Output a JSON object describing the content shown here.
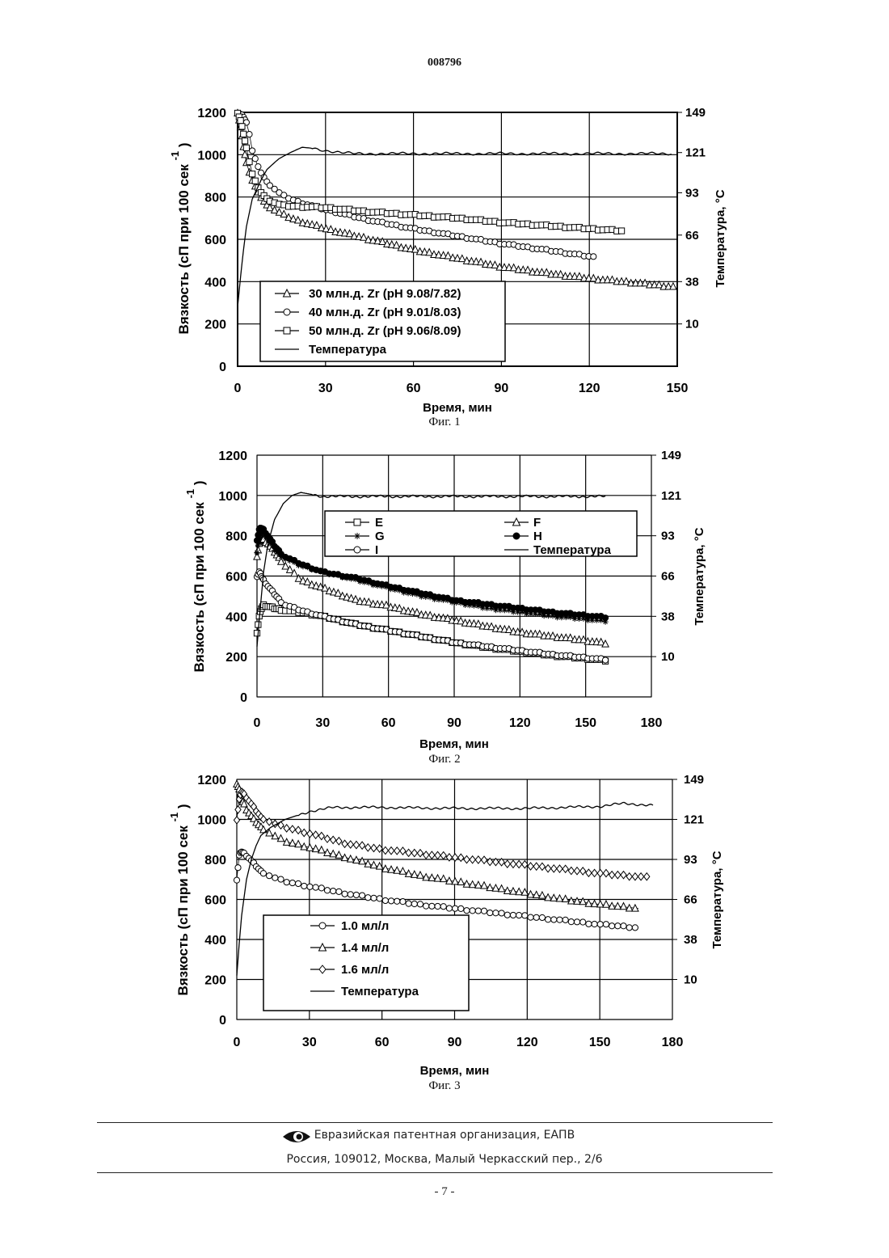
{
  "page": {
    "header_number": "008796",
    "footer_org": "Евразийская патентная организация, ЕАПВ",
    "footer_address": "Россия, 109012, Москва, Малый Черкасский пер., 2/6",
    "page_number": "- 7 -",
    "logo_icon": "eapo-eye-logo-icon"
  },
  "chart_data": [
    {
      "type": "line",
      "caption": "Фиг. 1",
      "xlabel": "Время, мин",
      "ylabel": "Вязкость (сП при 100 сек",
      "ylabel_sup": "-1",
      "ylabel_close": ")",
      "ylabel_right": "Температура,  °C",
      "xlim": [
        0,
        150
      ],
      "ylim": [
        0,
        1200
      ],
      "xticks": [
        "0",
        "30",
        "60",
        "90",
        "120",
        "150"
      ],
      "yticks": [
        "0",
        "200",
        "400",
        "600",
        "800",
        "1000",
        "1200"
      ],
      "y2_ticks": [
        "10",
        "38",
        "66",
        "93",
        "121",
        "149"
      ],
      "y2_positions": [
        200,
        400,
        620,
        820,
        1010,
        1200
      ],
      "grid": true,
      "legend_position": "bottom-left",
      "series": [
        {
          "name": "30  млн.д.  Zr (pH 9.08/7.82)",
          "marker": "triangle",
          "x_end": 149,
          "x": [
            0,
            1,
            2,
            3,
            5,
            7,
            10,
            15,
            20,
            30,
            45,
            60,
            75,
            90,
            105,
            120,
            135,
            149
          ],
          "values": [
            1200,
            1130,
            1040,
            960,
            880,
            820,
            760,
            720,
            690,
            650,
            600,
            550,
            510,
            470,
            440,
            415,
            395,
            375
          ]
        },
        {
          "name": "40  млн.д.  Zr (pH 9.01/8.03)",
          "marker": "circle",
          "x_end": 122,
          "x": [
            0,
            1,
            2,
            3,
            4,
            5,
            7,
            10,
            15,
            20,
            30,
            45,
            60,
            75,
            90,
            105,
            122
          ],
          "values": [
            1200,
            1190,
            1180,
            1150,
            1100,
            1020,
            940,
            870,
            810,
            780,
            740,
            690,
            650,
            615,
            580,
            550,
            515
          ]
        },
        {
          "name": "50  млн.д.  Zr (pH 9.06/8.09)",
          "marker": "square",
          "x_end": 131,
          "x": [
            0,
            1,
            2,
            3,
            4,
            5,
            7,
            10,
            15,
            20,
            30,
            45,
            60,
            75,
            90,
            105,
            120,
            131
          ],
          "values": [
            1200,
            1160,
            1100,
            1030,
            970,
            910,
            840,
            790,
            760,
            755,
            750,
            730,
            715,
            700,
            680,
            665,
            650,
            640
          ]
        },
        {
          "name": "Температура",
          "marker": "none",
          "x_end": 148,
          "x": [
            0,
            1,
            2,
            3,
            5,
            8,
            10,
            14,
            18,
            22,
            26,
            30,
            35,
            40,
            60,
            90,
            120,
            148
          ],
          "values": [
            280,
            420,
            550,
            660,
            790,
            880,
            930,
            980,
            1010,
            1035,
            1030,
            1020,
            1010,
            1005,
            1005,
            1005,
            1005,
            1005
          ]
        }
      ]
    },
    {
      "type": "line",
      "caption": "Фиг. 2",
      "xlabel": "Время, мин",
      "ylabel": "Вязкость (сП при 100 сек",
      "ylabel_sup": "-1",
      "ylabel_close": ")",
      "ylabel_right": "Температура,  °C",
      "xlim": [
        0,
        180
      ],
      "ylim": [
        0,
        1200
      ],
      "xticks": [
        "0",
        "30",
        "60",
        "90",
        "120",
        "150",
        "180"
      ],
      "yticks": [
        "0",
        "200",
        "400",
        "600",
        "800",
        "1000",
        "1200"
      ],
      "y2_ticks": [
        "10",
        "38",
        "66",
        "93",
        "121",
        "149"
      ],
      "y2_positions": [
        200,
        400,
        600,
        800,
        1000,
        1200
      ],
      "grid": true,
      "legend_position": "top-center",
      "series": [
        {
          "name": "E",
          "marker": "square",
          "x_end": 159,
          "x": [
            0,
            1,
            2,
            3,
            5,
            8,
            12,
            20,
            30,
            45,
            60,
            75,
            90,
            105,
            120,
            135,
            150,
            159
          ],
          "values": [
            320,
            400,
            440,
            455,
            450,
            440,
            430,
            420,
            400,
            360,
            330,
            300,
            270,
            245,
            225,
            205,
            190,
            180
          ]
        },
        {
          "name": "F",
          "marker": "triangle",
          "x_end": 159,
          "x": [
            0,
            1,
            2,
            3,
            5,
            8,
            12,
            20,
            30,
            45,
            60,
            75,
            90,
            105,
            120,
            135,
            150,
            159
          ],
          "values": [
            700,
            760,
            780,
            780,
            760,
            720,
            660,
            580,
            540,
            480,
            450,
            410,
            380,
            350,
            320,
            300,
            280,
            265
          ]
        },
        {
          "name": "G",
          "marker": "star",
          "x_end": 159,
          "x": [
            0,
            1,
            2,
            3,
            5,
            8,
            12,
            20,
            30,
            45,
            60,
            75,
            90,
            105,
            120,
            135,
            150,
            159
          ],
          "values": [
            720,
            790,
            820,
            810,
            780,
            730,
            690,
            650,
            620,
            580,
            540,
            500,
            470,
            440,
            420,
            400,
            385,
            375
          ]
        },
        {
          "name": "H",
          "marker": "filled-circle",
          "x_end": 159,
          "x": [
            0,
            1,
            2,
            3,
            5,
            8,
            12,
            20,
            30,
            45,
            60,
            75,
            90,
            105,
            120,
            135,
            150,
            159
          ],
          "values": [
            780,
            830,
            840,
            830,
            800,
            750,
            700,
            660,
            620,
            590,
            550,
            515,
            480,
            460,
            440,
            420,
            405,
            395
          ]
        },
        {
          "name": "I",
          "marker": "circle",
          "x_end": 159,
          "x": [
            0,
            1,
            2,
            3,
            5,
            8,
            12,
            20,
            30,
            45,
            60,
            75,
            90,
            105,
            120,
            135,
            150,
            159
          ],
          "values": [
            600,
            620,
            600,
            580,
            550,
            510,
            460,
            430,
            400,
            360,
            330,
            300,
            270,
            250,
            230,
            210,
            195,
            185
          ]
        },
        {
          "name": "Температура",
          "marker": "none",
          "x_end": 159,
          "x": [
            0,
            1,
            2,
            3,
            5,
            8,
            12,
            16,
            20,
            25,
            30,
            60,
            90,
            120,
            159
          ],
          "values": [
            250,
            380,
            500,
            620,
            760,
            880,
            960,
            1000,
            1015,
            1005,
            995,
            995,
            995,
            995,
            995
          ]
        }
      ]
    },
    {
      "type": "line",
      "caption": "Фиг. 3",
      "xlabel": "Время, мин",
      "ylabel": "Вязкость (сП при 100 сек",
      "ylabel_sup": "-1",
      "ylabel_close": ")",
      "ylabel_right": "Температура,  °C",
      "xlim": [
        0,
        180
      ],
      "ylim": [
        0,
        1200
      ],
      "xticks": [
        "0",
        "30",
        "60",
        "90",
        "120",
        "150",
        "180"
      ],
      "yticks": [
        "0",
        "200",
        "400",
        "600",
        "800",
        "1000",
        "1200"
      ],
      "y2_ticks": [
        "10",
        "38",
        "66",
        "93",
        "121",
        "149"
      ],
      "y2_positions": [
        200,
        400,
        600,
        800,
        1000,
        1200
      ],
      "grid": true,
      "legend_position": "bottom-left",
      "series": [
        {
          "name": "1.0 мл/л",
          "marker": "circle",
          "x_end": 165,
          "x": [
            0,
            1,
            2,
            4,
            7,
            10,
            15,
            20,
            30,
            45,
            60,
            75,
            90,
            105,
            120,
            135,
            150,
            165
          ],
          "values": [
            700,
            820,
            840,
            820,
            780,
            740,
            710,
            690,
            665,
            630,
            600,
            575,
            555,
            535,
            515,
            495,
            475,
            460
          ]
        },
        {
          "name": "1.4 мл/л",
          "marker": "triangle",
          "x_end": 166,
          "x": [
            0,
            1,
            2,
            4,
            7,
            10,
            15,
            20,
            30,
            45,
            60,
            75,
            90,
            105,
            120,
            135,
            150,
            166
          ],
          "values": [
            1180,
            1150,
            1100,
            1050,
            1000,
            960,
            920,
            890,
            860,
            810,
            760,
            720,
            690,
            660,
            630,
            600,
            575,
            555
          ]
        },
        {
          "name": "1.6 мл/л",
          "marker": "diamond",
          "x_end": 170,
          "x": [
            0,
            1,
            2,
            4,
            7,
            10,
            15,
            20,
            30,
            45,
            60,
            75,
            90,
            105,
            120,
            135,
            150,
            170
          ],
          "values": [
            1000,
            1100,
            1140,
            1110,
            1060,
            1010,
            980,
            960,
            930,
            880,
            850,
            830,
            810,
            790,
            770,
            750,
            730,
            710
          ]
        },
        {
          "name": "Температура",
          "marker": "none",
          "x_end": 172,
          "x": [
            0,
            1,
            2,
            4,
            6,
            8,
            10,
            14,
            20,
            30,
            40,
            60,
            90,
            120,
            150,
            160,
            172
          ],
          "values": [
            220,
            380,
            520,
            700,
            800,
            870,
            920,
            960,
            1000,
            1040,
            1060,
            1060,
            1055,
            1055,
            1065,
            1080,
            1070
          ]
        }
      ]
    }
  ]
}
